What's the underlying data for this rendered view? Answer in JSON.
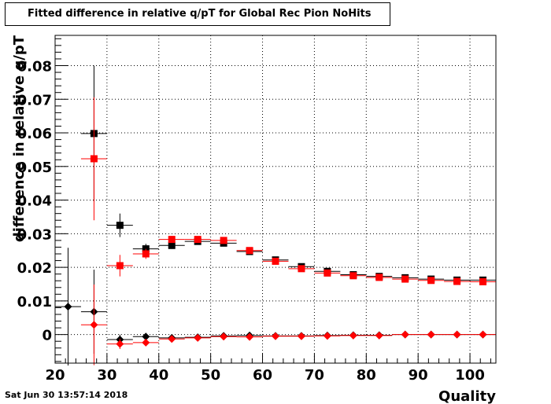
{
  "title": "Fitted difference in relative q/pT for Global Rec Pion NoHits",
  "timestamp": "Sat Jun 30 13:57:14 2018",
  "chart_data": {
    "type": "scatter",
    "xlabel": "Quality",
    "ylabel": "difference in relative q/pT",
    "xlim": [
      20,
      105
    ],
    "ylim": [
      -0.0085,
      0.089
    ],
    "x_ticks": [
      "20",
      "30",
      "40",
      "50",
      "60",
      "70",
      "80",
      "90",
      "100"
    ],
    "y_ticks": [
      "0",
      "0.01",
      "0.02",
      "0.03",
      "0.04",
      "0.05",
      "0.06",
      "0.07",
      "0.08"
    ],
    "grid": true,
    "bin_half_width": 2.5,
    "series": [
      {
        "marker": "square",
        "color": "#000000",
        "points": [
          {
            "x": 27.5,
            "y": 0.0598,
            "err": 0.0202
          },
          {
            "x": 32.5,
            "y": 0.0325,
            "err": 0.0035
          },
          {
            "x": 37.5,
            "y": 0.0255,
            "err": 0.0015
          },
          {
            "x": 42.5,
            "y": 0.0265,
            "err": 0.001
          },
          {
            "x": 47.5,
            "y": 0.0277,
            "err": 0.0008
          },
          {
            "x": 52.5,
            "y": 0.0272,
            "err": 0.0006
          },
          {
            "x": 57.5,
            "y": 0.0247,
            "err": 0.0005
          },
          {
            "x": 62.5,
            "y": 0.0222,
            "err": 0.0004
          },
          {
            "x": 67.5,
            "y": 0.0202,
            "err": 0.0004
          },
          {
            "x": 72.5,
            "y": 0.0188,
            "err": 0.0003
          },
          {
            "x": 77.5,
            "y": 0.0178,
            "err": 0.0003
          },
          {
            "x": 82.5,
            "y": 0.0173,
            "err": 0.0003
          },
          {
            "x": 87.5,
            "y": 0.0169,
            "err": 0.0003
          },
          {
            "x": 92.5,
            "y": 0.0165,
            "err": 0.0003
          },
          {
            "x": 97.5,
            "y": 0.0162,
            "err": 0.0003
          },
          {
            "x": 102.5,
            "y": 0.0162,
            "err": 0.0003
          }
        ]
      },
      {
        "marker": "square",
        "color": "#ff0000",
        "points": [
          {
            "x": 27.5,
            "y": 0.0523,
            "err": 0.0183
          },
          {
            "x": 32.5,
            "y": 0.0205,
            "err": 0.0032
          },
          {
            "x": 37.5,
            "y": 0.024,
            "err": 0.0015
          },
          {
            "x": 42.5,
            "y": 0.0283,
            "err": 0.001
          },
          {
            "x": 47.5,
            "y": 0.0283,
            "err": 0.0008
          },
          {
            "x": 52.5,
            "y": 0.028,
            "err": 0.0006
          },
          {
            "x": 57.5,
            "y": 0.025,
            "err": 0.0005
          },
          {
            "x": 62.5,
            "y": 0.0218,
            "err": 0.0004
          },
          {
            "x": 67.5,
            "y": 0.0196,
            "err": 0.0004
          },
          {
            "x": 72.5,
            "y": 0.0183,
            "err": 0.0003
          },
          {
            "x": 77.5,
            "y": 0.0175,
            "err": 0.0003
          },
          {
            "x": 82.5,
            "y": 0.017,
            "err": 0.0003
          },
          {
            "x": 87.5,
            "y": 0.0165,
            "err": 0.0003
          },
          {
            "x": 92.5,
            "y": 0.0161,
            "err": 0.0003
          },
          {
            "x": 97.5,
            "y": 0.0158,
            "err": 0.0003
          },
          {
            "x": 102.5,
            "y": 0.0157,
            "err": 0.0003
          }
        ]
      },
      {
        "marker": "diamond",
        "color": "#000000",
        "points": [
          {
            "x": 22.5,
            "y": 0.0083,
            "err": 0.0175
          },
          {
            "x": 27.5,
            "y": 0.0068,
            "err": 0.0125
          },
          {
            "x": 32.5,
            "y": -0.0015,
            "err": 0.0015
          },
          {
            "x": 37.5,
            "y": -0.0006,
            "err": 0.0008
          },
          {
            "x": 42.5,
            "y": -0.001,
            "err": 0.0005
          },
          {
            "x": 47.5,
            "y": -0.0008,
            "err": 0.0004
          },
          {
            "x": 52.5,
            "y": -0.0004,
            "err": 0.0003
          },
          {
            "x": 57.5,
            "y": -0.0003,
            "err": 0.0003
          },
          {
            "x": 62.5,
            "y": -0.0004,
            "err": 0.0002
          },
          {
            "x": 67.5,
            "y": -0.0004,
            "err": 0.0002
          },
          {
            "x": 72.5,
            "y": -0.0003,
            "err": 0.0002
          },
          {
            "x": 77.5,
            "y": -0.0002,
            "err": 0.0002
          },
          {
            "x": 82.5,
            "y": -0.0002,
            "err": 0.0002
          },
          {
            "x": 87.5,
            "y": 0.0,
            "err": 0.0002
          },
          {
            "x": 92.5,
            "y": 0.0,
            "err": 0.0002
          },
          {
            "x": 97.5,
            "y": 0.0,
            "err": 0.0002
          },
          {
            "x": 102.5,
            "y": 0.0,
            "err": 0.0002
          }
        ]
      },
      {
        "marker": "diamond",
        "color": "#ff0000",
        "points": [
          {
            "x": 27.5,
            "y": 0.0029,
            "err": 0.012
          },
          {
            "x": 32.5,
            "y": -0.0028,
            "err": 0.0015
          },
          {
            "x": 37.5,
            "y": -0.0024,
            "err": 0.0008
          },
          {
            "x": 42.5,
            "y": -0.0013,
            "err": 0.0005
          },
          {
            "x": 47.5,
            "y": -0.001,
            "err": 0.0004
          },
          {
            "x": 52.5,
            "y": -0.0006,
            "err": 0.0003
          },
          {
            "x": 57.5,
            "y": -0.0007,
            "err": 0.0003
          },
          {
            "x": 62.5,
            "y": -0.0005,
            "err": 0.0002
          },
          {
            "x": 67.5,
            "y": -0.0005,
            "err": 0.0002
          },
          {
            "x": 72.5,
            "y": -0.0004,
            "err": 0.0002
          },
          {
            "x": 77.5,
            "y": -0.0003,
            "err": 0.0002
          },
          {
            "x": 82.5,
            "y": -0.0003,
            "err": 0.0002
          },
          {
            "x": 87.5,
            "y": 0.0,
            "err": 0.0002
          },
          {
            "x": 92.5,
            "y": 0.0,
            "err": 0.0002
          },
          {
            "x": 97.5,
            "y": 0.0,
            "err": 0.0002
          },
          {
            "x": 102.5,
            "y": 0.0,
            "err": 0.0002
          }
        ]
      }
    ]
  }
}
